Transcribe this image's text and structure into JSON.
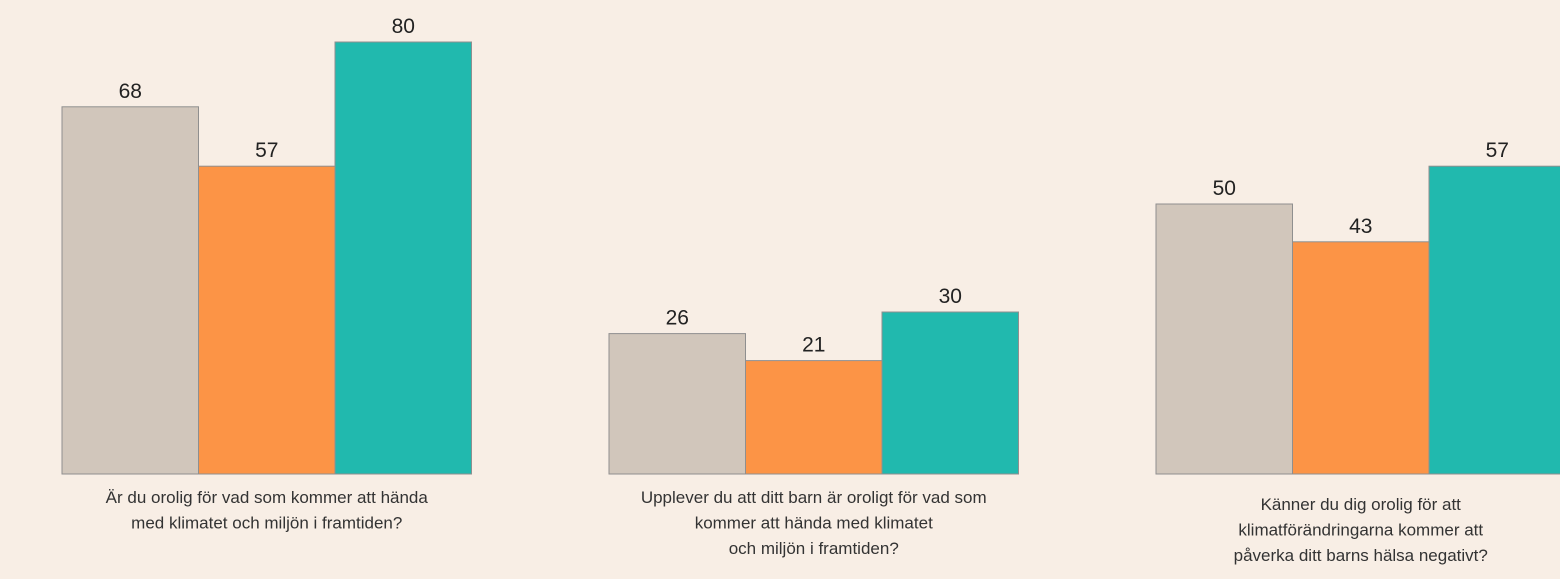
{
  "chart_data": {
    "type": "bar",
    "categories": [
      [
        "Är du orolig för vad som kommer att hända",
        "med klimatet och miljön i framtiden?"
      ],
      [
        "Upplever du att ditt barn är oroligt för vad som",
        "kommer att hända med klimatet",
        "och miljön i framtiden?"
      ],
      [
        "Känner du dig orolig för att",
        "klimatförändringarna kommer att",
        "påverka ditt barns hälsa negativt?"
      ]
    ],
    "series": [
      {
        "color": "#d1c6bb",
        "values": [
          68,
          26,
          50
        ]
      },
      {
        "color": "#fc9446",
        "values": [
          57,
          21,
          43
        ]
      },
      {
        "color": "#21b9ae",
        "values": [
          80,
          30,
          57
        ]
      }
    ],
    "ylim": [
      0,
      80
    ]
  }
}
